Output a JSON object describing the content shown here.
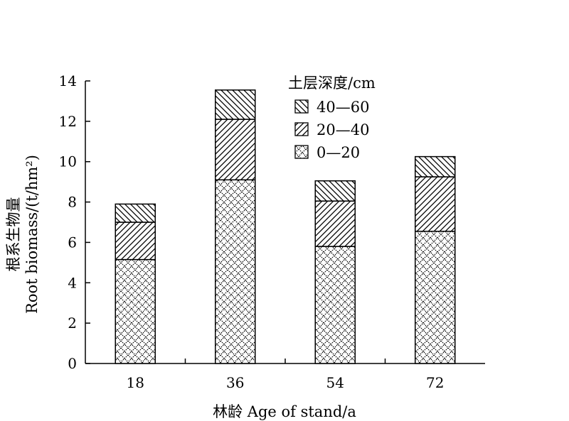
{
  "chart_data": {
    "type": "bar",
    "stacked": true,
    "title": "",
    "xlabel": "林龄 Age of stand/a",
    "ylabel_cn": "根系生物量",
    "ylabel_en": "Root biomass/(t/hm²)",
    "categories": [
      "18",
      "36",
      "54",
      "72"
    ],
    "ylim": [
      0,
      14
    ],
    "yticks": [
      "0",
      "2",
      "4",
      "6",
      "8",
      "10",
      "12",
      "14"
    ],
    "legend_title": "土层深度/cm",
    "legend_position": "top-right",
    "grid": false,
    "series": [
      {
        "name": "0—20",
        "pattern": "crosshatch",
        "values": [
          5.15,
          9.1,
          5.8,
          6.55
        ]
      },
      {
        "name": "20—40",
        "pattern": "forward-diagonal",
        "values": [
          1.85,
          3.0,
          2.25,
          2.7
        ]
      },
      {
        "name": "40—60",
        "pattern": "backward-diagonal",
        "values": [
          0.9,
          1.45,
          1.0,
          1.0
        ]
      }
    ]
  }
}
